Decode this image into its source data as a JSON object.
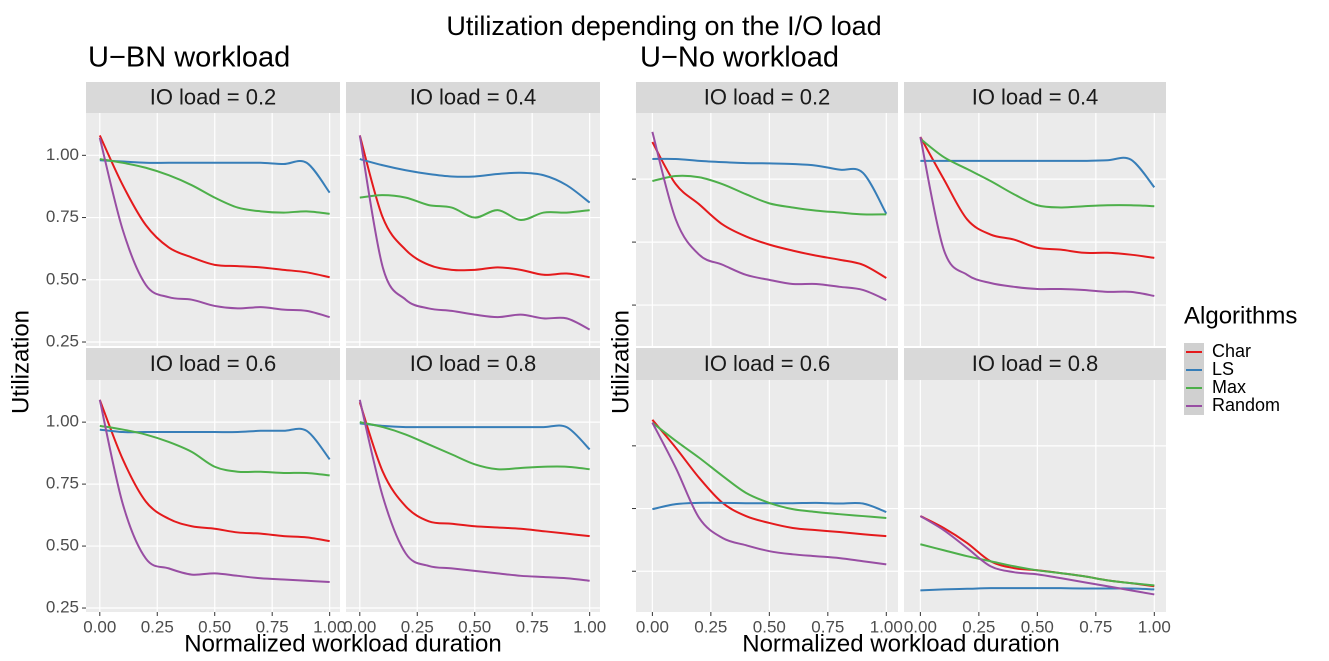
{
  "title": "Utilization depending on the I/O load",
  "groups": [
    {
      "title": "U−BN workload",
      "x_label": "Normalized workload duration",
      "y_label": "Utilization"
    },
    {
      "title": "U−No workload",
      "x_label": "Normalized workload duration",
      "y_label": "Utilization"
    }
  ],
  "legend_title": "Algorithms",
  "chart_data": [
    {
      "type": "line",
      "title": "IO load = 0.2",
      "x": [
        0,
        0.1,
        0.2,
        0.3,
        0.4,
        0.5,
        0.6,
        0.7,
        0.8,
        0.9,
        1
      ],
      "xlim": [
        -0.06,
        1.045
      ],
      "ylim": [
        0.234,
        1.17
      ],
      "xticks": [
        {
          "value": 0,
          "label": "0.00"
        },
        0.25,
        {
          "value": 0.5,
          "label": "0.50"
        },
        0.75,
        {
          "value": 1,
          "label": "1.00"
        }
      ],
      "yticks": [
        0.25,
        {
          "value": 0.5,
          "label": "0.50"
        },
        0.75,
        {
          "value": 1,
          "label": "1.00"
        }
      ],
      "series": [
        {
          "name": "Char",
          "color": "#e41a1c",
          "values": [
            1.08,
            0.88,
            0.72,
            0.63,
            0.59,
            0.56,
            0.555,
            0.55,
            0.54,
            0.53,
            0.51
          ]
        },
        {
          "name": "LS",
          "color": "#377eb8",
          "values": [
            0.98,
            0.975,
            0.97,
            0.97,
            0.97,
            0.97,
            0.97,
            0.97,
            0.965,
            0.97,
            0.85
          ]
        },
        {
          "name": "Max",
          "color": "#4daf4a",
          "values": [
            0.985,
            0.97,
            0.95,
            0.92,
            0.88,
            0.83,
            0.79,
            0.775,
            0.77,
            0.775,
            0.765
          ]
        },
        {
          "name": "Random",
          "color": "#984ea3",
          "values": [
            1.07,
            0.7,
            0.48,
            0.43,
            0.42,
            0.395,
            0.385,
            0.39,
            0.38,
            0.375,
            0.35
          ]
        }
      ]
    },
    {
      "type": "line",
      "title": "IO load = 0.4",
      "x": [
        0,
        0.1,
        0.2,
        0.3,
        0.4,
        0.5,
        0.6,
        0.7,
        0.8,
        0.9,
        1
      ],
      "xlim": [
        -0.06,
        1.045
      ],
      "ylim": [
        0.234,
        1.17
      ],
      "xticks": [
        {
          "value": 0,
          "label": "0.00"
        },
        0.25,
        {
          "value": 0.5,
          "label": "0.50"
        },
        0.75,
        {
          "value": 1,
          "label": "1.00"
        }
      ],
      "yticks": [
        0.25,
        {
          "value": 0.5,
          "label": "0.50"
        },
        0.75,
        {
          "value": 1,
          "label": "1.00"
        }
      ],
      "series": [
        {
          "name": "Char",
          "color": "#e41a1c",
          "values": [
            1.08,
            0.75,
            0.62,
            0.56,
            0.54,
            0.54,
            0.55,
            0.54,
            0.52,
            0.525,
            0.51
          ]
        },
        {
          "name": "LS",
          "color": "#377eb8",
          "values": [
            0.985,
            0.96,
            0.94,
            0.925,
            0.915,
            0.915,
            0.925,
            0.93,
            0.92,
            0.88,
            0.81
          ]
        },
        {
          "name": "Max",
          "color": "#4daf4a",
          "values": [
            0.83,
            0.84,
            0.83,
            0.8,
            0.79,
            0.75,
            0.78,
            0.74,
            0.77,
            0.77,
            0.78
          ]
        },
        {
          "name": "Random",
          "color": "#984ea3",
          "values": [
            1.08,
            0.55,
            0.42,
            0.385,
            0.375,
            0.36,
            0.35,
            0.36,
            0.345,
            0.345,
            0.3
          ]
        }
      ]
    },
    {
      "type": "line",
      "title": "IO load = 0.6",
      "x": [
        0,
        0.1,
        0.2,
        0.3,
        0.4,
        0.5,
        0.6,
        0.7,
        0.8,
        0.9,
        1
      ],
      "xlim": [
        -0.06,
        1.045
      ],
      "ylim": [
        0.234,
        1.17
      ],
      "xticks": [
        {
          "value": 0,
          "label": "0.00"
        },
        0.25,
        {
          "value": 0.5,
          "label": "0.50"
        },
        0.75,
        {
          "value": 1,
          "label": "1.00"
        }
      ],
      "yticks": [
        0.25,
        {
          "value": 0.5,
          "label": "0.50"
        },
        0.75,
        {
          "value": 1,
          "label": "1.00"
        }
      ],
      "series": [
        {
          "name": "Char",
          "color": "#e41a1c",
          "values": [
            1.09,
            0.85,
            0.68,
            0.61,
            0.58,
            0.57,
            0.555,
            0.55,
            0.54,
            0.535,
            0.52
          ]
        },
        {
          "name": "LS",
          "color": "#377eb8",
          "values": [
            0.97,
            0.96,
            0.96,
            0.96,
            0.96,
            0.96,
            0.96,
            0.965,
            0.965,
            0.965,
            0.85
          ]
        },
        {
          "name": "Max",
          "color": "#4daf4a",
          "values": [
            0.985,
            0.97,
            0.95,
            0.92,
            0.88,
            0.82,
            0.8,
            0.8,
            0.795,
            0.795,
            0.785
          ]
        },
        {
          "name": "Random",
          "color": "#984ea3",
          "values": [
            1.09,
            0.67,
            0.45,
            0.41,
            0.385,
            0.39,
            0.38,
            0.37,
            0.365,
            0.36,
            0.355
          ]
        }
      ]
    },
    {
      "type": "line",
      "title": "IO load = 0.8",
      "x": [
        0,
        0.1,
        0.2,
        0.3,
        0.4,
        0.5,
        0.6,
        0.7,
        0.8,
        0.9,
        1
      ],
      "xlim": [
        -0.06,
        1.045
      ],
      "ylim": [
        0.234,
        1.17
      ],
      "xticks": [
        {
          "value": 0,
          "label": "0.00"
        },
        0.25,
        {
          "value": 0.5,
          "label": "0.50"
        },
        0.75,
        {
          "value": 1,
          "label": "1.00"
        }
      ],
      "yticks": [
        0.25,
        {
          "value": 0.5,
          "label": "0.50"
        },
        0.75,
        {
          "value": 1,
          "label": "1.00"
        }
      ],
      "series": [
        {
          "name": "Char",
          "color": "#e41a1c",
          "values": [
            1.08,
            0.8,
            0.66,
            0.6,
            0.59,
            0.58,
            0.575,
            0.57,
            0.56,
            0.55,
            0.54
          ]
        },
        {
          "name": "LS",
          "color": "#377eb8",
          "values": [
            0.995,
            0.985,
            0.98,
            0.98,
            0.98,
            0.98,
            0.98,
            0.98,
            0.98,
            0.98,
            0.89
          ]
        },
        {
          "name": "Max",
          "color": "#4daf4a",
          "values": [
            1.0,
            0.98,
            0.95,
            0.91,
            0.87,
            0.83,
            0.81,
            0.815,
            0.82,
            0.82,
            0.81
          ]
        },
        {
          "name": "Random",
          "color": "#984ea3",
          "values": [
            1.09,
            0.7,
            0.47,
            0.42,
            0.41,
            0.4,
            0.39,
            0.38,
            0.375,
            0.37,
            0.36
          ]
        }
      ]
    },
    {
      "type": "line",
      "title": "IO load = 0.2",
      "x": [
        0,
        0.1,
        0.2,
        0.3,
        0.4,
        0.5,
        0.6,
        0.7,
        0.8,
        0.9,
        1
      ],
      "xlim": [
        -0.07,
        1.05
      ],
      "ylim": [
        0.27,
        1.01
      ],
      "xticks": [
        {
          "value": 0,
          "label": "0.00"
        },
        0.25,
        {
          "value": 0.5,
          "label": "0.50"
        },
        0.75,
        {
          "value": 1,
          "label": "1.00"
        }
      ],
      "yticks": [
        0.4,
        0.6,
        0.8
      ],
      "series": [
        {
          "name": "Char",
          "color": "#e41a1c",
          "values": [
            0.918,
            0.784,
            0.72,
            0.656,
            0.618,
            0.592,
            0.573,
            0.557,
            0.544,
            0.528,
            0.486
          ]
        },
        {
          "name": "LS",
          "color": "#377eb8",
          "values": [
            0.864,
            0.864,
            0.858,
            0.854,
            0.851,
            0.85,
            0.848,
            0.843,
            0.83,
            0.82,
            0.69
          ]
        },
        {
          "name": "Max",
          "color": "#4daf4a",
          "values": [
            0.794,
            0.81,
            0.806,
            0.784,
            0.752,
            0.723,
            0.71,
            0.7,
            0.694,
            0.688,
            0.688
          ]
        },
        {
          "name": "Random",
          "color": "#984ea3",
          "values": [
            0.95,
            0.672,
            0.56,
            0.528,
            0.496,
            0.48,
            0.467,
            0.467,
            0.458,
            0.448,
            0.416
          ]
        }
      ]
    },
    {
      "type": "line",
      "title": "IO load = 0.4",
      "x": [
        0,
        0.1,
        0.2,
        0.3,
        0.4,
        0.5,
        0.6,
        0.7,
        0.8,
        0.9,
        1
      ],
      "xlim": [
        -0.07,
        1.05
      ],
      "ylim": [
        0.27,
        1.01
      ],
      "xticks": [
        {
          "value": 0,
          "label": "0.00"
        },
        0.25,
        {
          "value": 0.5,
          "label": "0.50"
        },
        0.75,
        {
          "value": 1,
          "label": "1.00"
        }
      ],
      "yticks": [
        0.4,
        0.6,
        0.8
      ],
      "series": [
        {
          "name": "Char",
          "color": "#e41a1c",
          "values": [
            0.934,
            0.8,
            0.672,
            0.624,
            0.608,
            0.582,
            0.576,
            0.566,
            0.566,
            0.56,
            0.55
          ]
        },
        {
          "name": "LS",
          "color": "#377eb8",
          "values": [
            0.858,
            0.858,
            0.858,
            0.858,
            0.858,
            0.858,
            0.858,
            0.858,
            0.86,
            0.862,
            0.774
          ]
        },
        {
          "name": "Max",
          "color": "#4daf4a",
          "values": [
            0.928,
            0.87,
            0.832,
            0.794,
            0.752,
            0.717,
            0.71,
            0.714,
            0.717,
            0.717,
            0.714
          ]
        },
        {
          "name": "Random",
          "color": "#984ea3",
          "values": [
            0.934,
            0.576,
            0.496,
            0.47,
            0.458,
            0.451,
            0.451,
            0.448,
            0.442,
            0.442,
            0.429
          ]
        }
      ]
    },
    {
      "type": "line",
      "title": "IO load = 0.6",
      "x": [
        0,
        0.1,
        0.2,
        0.3,
        0.4,
        0.5,
        0.6,
        0.7,
        0.8,
        0.9,
        1
      ],
      "xlim": [
        -0.07,
        1.05
      ],
      "ylim": [
        0.27,
        1.01
      ],
      "xticks": [
        {
          "value": 0,
          "label": "0.00"
        },
        0.25,
        {
          "value": 0.5,
          "label": "0.50"
        },
        0.75,
        {
          "value": 1,
          "label": "1.00"
        }
      ],
      "yticks": [
        0.4,
        0.6,
        0.8
      ],
      "series": [
        {
          "name": "Char",
          "color": "#e41a1c",
          "values": [
            0.883,
            0.794,
            0.698,
            0.618,
            0.576,
            0.554,
            0.538,
            0.531,
            0.525,
            0.518,
            0.512
          ]
        },
        {
          "name": "LS",
          "color": "#377eb8",
          "values": [
            0.598,
            0.614,
            0.618,
            0.618,
            0.617,
            0.617,
            0.617,
            0.618,
            0.616,
            0.616,
            0.589
          ]
        },
        {
          "name": "Max",
          "color": "#4daf4a",
          "values": [
            0.874,
            0.816,
            0.762,
            0.704,
            0.65,
            0.618,
            0.598,
            0.589,
            0.582,
            0.576,
            0.57
          ]
        },
        {
          "name": "Random",
          "color": "#984ea3",
          "values": [
            0.874,
            0.73,
            0.57,
            0.506,
            0.483,
            0.464,
            0.454,
            0.448,
            0.442,
            0.432,
            0.422
          ]
        }
      ]
    },
    {
      "type": "line",
      "title": "IO load = 0.8",
      "x": [
        0,
        0.1,
        0.2,
        0.3,
        0.4,
        0.5,
        0.6,
        0.7,
        0.8,
        0.9,
        1
      ],
      "xlim": [
        -0.07,
        1.05
      ],
      "ylim": [
        0.27,
        1.01
      ],
      "xticks": [
        {
          "value": 0,
          "label": "0.00"
        },
        0.25,
        {
          "value": 0.5,
          "label": "0.50"
        },
        0.75,
        {
          "value": 1,
          "label": "1.00"
        }
      ],
      "yticks": [
        0.4,
        0.6,
        0.8
      ],
      "series": [
        {
          "name": "Char",
          "color": "#e41a1c",
          "values": [
            0.576,
            0.538,
            0.49,
            0.432,
            0.41,
            0.403,
            0.394,
            0.384,
            0.371,
            0.362,
            0.352
          ]
        },
        {
          "name": "LS",
          "color": "#377eb8",
          "values": [
            0.339,
            0.342,
            0.344,
            0.346,
            0.346,
            0.346,
            0.346,
            0.345,
            0.345,
            0.345,
            0.342
          ]
        },
        {
          "name": "Max",
          "color": "#4daf4a",
          "values": [
            0.486,
            0.467,
            0.448,
            0.432,
            0.416,
            0.403,
            0.394,
            0.384,
            0.371,
            0.362,
            0.355
          ]
        },
        {
          "name": "Random",
          "color": "#984ea3",
          "values": [
            0.576,
            0.531,
            0.474,
            0.416,
            0.397,
            0.39,
            0.378,
            0.365,
            0.352,
            0.339,
            0.326
          ]
        }
      ]
    }
  ]
}
